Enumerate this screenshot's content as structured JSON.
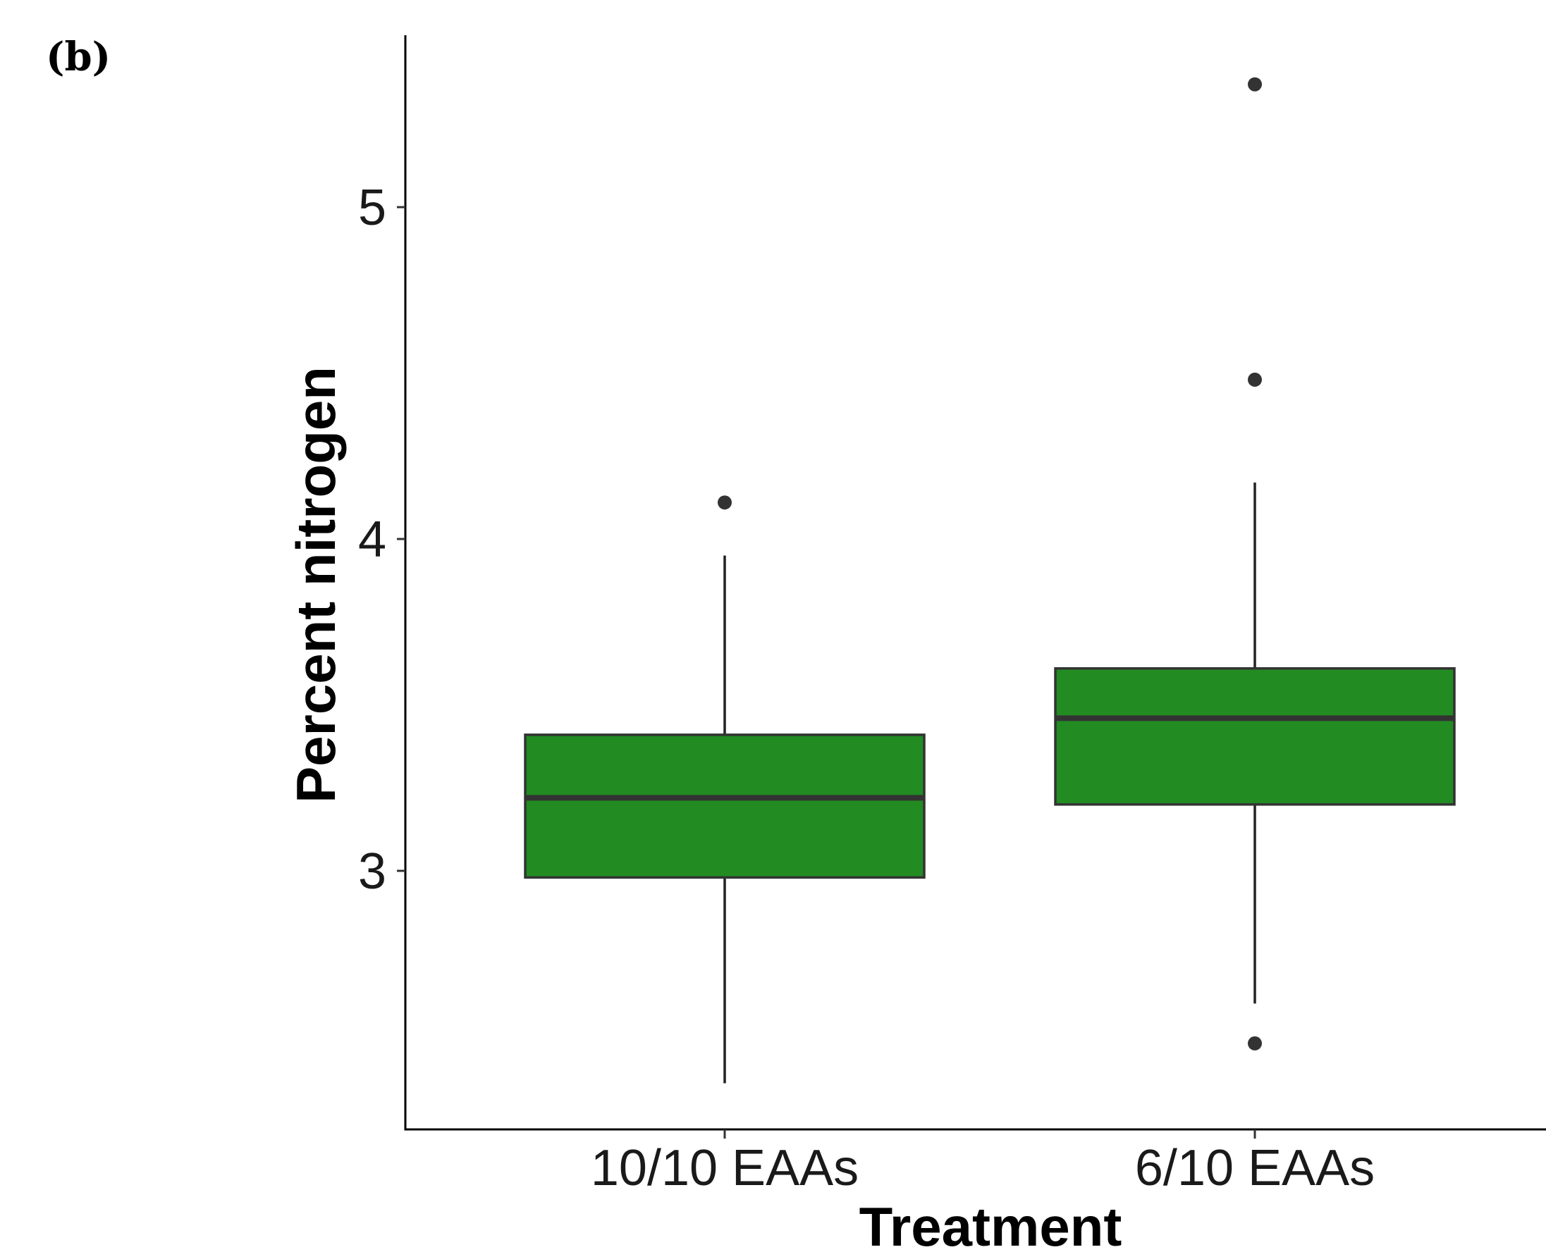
{
  "panel_label": "(b)",
  "chart_data": {
    "type": "box",
    "title": "",
    "xlabel": "Treatment",
    "ylabel": "Percent nitrogen",
    "ylim": [
      2.22,
      5.52
    ],
    "yticks": [
      3,
      4,
      5
    ],
    "ytick_labels": [
      "3",
      "4",
      "5"
    ],
    "grid": false,
    "legend": "none",
    "box_color": "#228B22",
    "outline_color": "#333333",
    "categories": [
      "10/10 EAAs",
      "6/10 EAAs"
    ],
    "boxes": [
      {
        "category": "10/10 EAAs",
        "whisker_low": 2.36,
        "q1": 2.98,
        "median": 3.22,
        "q3": 3.41,
        "whisker_high": 3.95,
        "outliers": [
          4.11
        ]
      },
      {
        "category": "6/10 EAAs",
        "whisker_low": 2.6,
        "q1": 3.2,
        "median": 3.46,
        "q3": 3.61,
        "whisker_high": 4.17,
        "outliers": [
          5.37,
          4.48,
          2.48
        ]
      }
    ]
  }
}
